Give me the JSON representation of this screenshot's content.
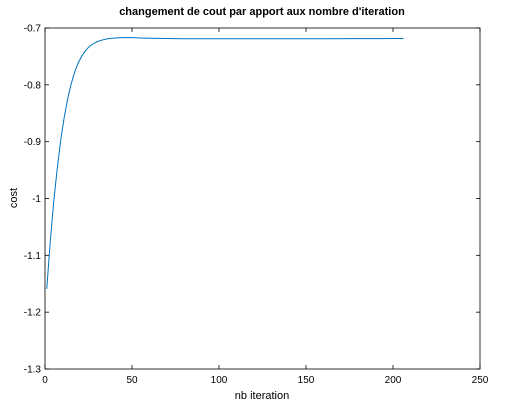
{
  "chart_data": {
    "type": "line",
    "title": "changement de cout par apport aux nombre d'iteration",
    "xlabel": "nb iteration",
    "ylabel": "cost",
    "xlim": [
      0,
      250
    ],
    "ylim": [
      -1.3,
      -0.7
    ],
    "xticks": [
      0,
      50,
      100,
      150,
      200,
      250
    ],
    "xtick_labels": [
      "0",
      "50",
      "100",
      "150",
      "200",
      "250"
    ],
    "yticks": [
      -1.3,
      -1.2,
      -1.1,
      -1,
      -0.9,
      -0.8,
      -0.7
    ],
    "ytick_labels": [
      "-1.3",
      "-1.2",
      "-1.1",
      "-1",
      "-0.9",
      "-0.8",
      "-0.7"
    ],
    "grid": false,
    "series": [
      {
        "color": "#0072bd",
        "x": [
          1,
          3,
          5,
          7,
          9,
          11,
          13,
          15,
          17,
          19,
          21,
          23,
          25,
          27,
          30,
          33,
          36,
          40,
          45,
          50,
          55,
          60,
          70,
          80,
          90,
          100,
          120,
          140,
          160,
          180,
          200,
          206
        ],
        "y": [
          -1.159,
          -1.077,
          -1.006,
          -0.948,
          -0.898,
          -0.858,
          -0.825,
          -0.799,
          -0.778,
          -0.762,
          -0.75,
          -0.741,
          -0.734,
          -0.729,
          -0.724,
          -0.721,
          -0.719,
          -0.7175,
          -0.717,
          -0.717,
          -0.7175,
          -0.718,
          -0.7185,
          -0.719,
          -0.719,
          -0.719,
          -0.719,
          -0.719,
          -0.719,
          -0.7188,
          -0.7185,
          -0.7185
        ]
      }
    ]
  }
}
